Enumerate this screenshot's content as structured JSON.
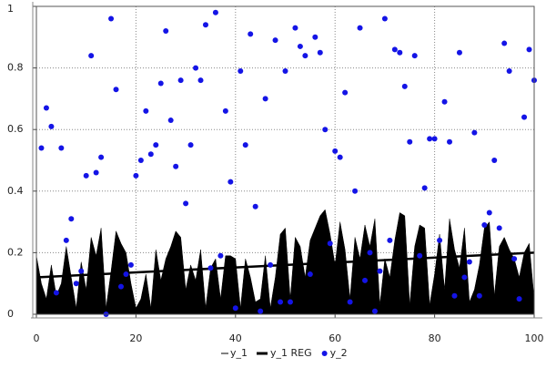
{
  "chart_data": {
    "type": "mixed",
    "xlim": [
      0,
      100
    ],
    "xticks": [
      0,
      20,
      40,
      60,
      80,
      100
    ],
    "ylim": [
      0,
      1
    ],
    "yticks": [
      0,
      0.2,
      0.4,
      0.6,
      0.8,
      1
    ],
    "grid": true,
    "legend": "bottom",
    "series": [
      {
        "name": "y_1",
        "type": "area",
        "color": "#000000",
        "x": [
          0,
          1,
          2,
          3,
          4,
          5,
          6,
          7,
          8,
          9,
          10,
          11,
          12,
          13,
          14,
          15,
          16,
          17,
          18,
          19,
          20,
          21,
          22,
          23,
          24,
          25,
          26,
          27,
          28,
          29,
          30,
          31,
          32,
          33,
          34,
          35,
          36,
          37,
          38,
          39,
          40,
          41,
          42,
          43,
          44,
          45,
          46,
          47,
          48,
          49,
          50,
          51,
          52,
          53,
          54,
          55,
          56,
          57,
          58,
          59,
          60,
          61,
          62,
          63,
          64,
          65,
          66,
          67,
          68,
          69,
          70,
          71,
          72,
          73,
          74,
          75,
          76,
          77,
          78,
          79,
          80,
          81,
          82,
          83,
          84,
          85,
          86,
          87,
          88,
          89,
          90,
          91,
          92,
          93,
          94,
          95,
          96,
          97,
          98,
          99,
          100
        ],
        "values": [
          0.19,
          0.1,
          0.05,
          0.16,
          0.06,
          0.1,
          0.22,
          0.12,
          0.02,
          0.17,
          0.08,
          0.25,
          0.19,
          0.28,
          0.02,
          0.14,
          0.27,
          0.23,
          0.2,
          0.1,
          0.02,
          0.05,
          0.13,
          0.02,
          0.21,
          0.11,
          0.18,
          0.22,
          0.27,
          0.25,
          0.08,
          0.16,
          0.11,
          0.21,
          0.02,
          0.15,
          0.18,
          0.05,
          0.19,
          0.19,
          0.18,
          0.02,
          0.18,
          0.12,
          0.04,
          0.05,
          0.19,
          0.02,
          0.12,
          0.26,
          0.28,
          0.05,
          0.25,
          0.22,
          0.12,
          0.24,
          0.28,
          0.32,
          0.34,
          0.26,
          0.16,
          0.3,
          0.21,
          0.05,
          0.25,
          0.18,
          0.29,
          0.22,
          0.31,
          0.03,
          0.18,
          0.12,
          0.24,
          0.33,
          0.32,
          0.03,
          0.22,
          0.29,
          0.28,
          0.03,
          0.13,
          0.26,
          0.08,
          0.31,
          0.21,
          0.15,
          0.28,
          0.04,
          0.08,
          0.16,
          0.28,
          0.3,
          0.06,
          0.22,
          0.25,
          0.21,
          0.18,
          0.12,
          0.2,
          0.23,
          0.05
        ]
      },
      {
        "name": "y_1 REG",
        "type": "line",
        "color": "#000000",
        "x": [
          0,
          100
        ],
        "values": [
          0.12,
          0.2
        ]
      },
      {
        "name": "y_2",
        "type": "scatter",
        "color": "#1414e6",
        "x": [
          1,
          2,
          3,
          4,
          5,
          6,
          7,
          8,
          9,
          10,
          11,
          12,
          13,
          14,
          15,
          16,
          17,
          18,
          19,
          20,
          21,
          22,
          23,
          24,
          25,
          26,
          27,
          28,
          29,
          30,
          31,
          32,
          33,
          34,
          35,
          36,
          37,
          38,
          39,
          40,
          41,
          42,
          43,
          44,
          45,
          46,
          47,
          48,
          49,
          50,
          51,
          52,
          53,
          54,
          55,
          56,
          57,
          58,
          59,
          60,
          61,
          62,
          63,
          64,
          65,
          66,
          67,
          68,
          69,
          70,
          71,
          72,
          73,
          74,
          75,
          76,
          77,
          78,
          79,
          80,
          81,
          82,
          83,
          84,
          85,
          86,
          87,
          88,
          89,
          90,
          91,
          92,
          93,
          94,
          95,
          96,
          97,
          98,
          99,
          100
        ],
        "values": [
          0.54,
          0.67,
          0.61,
          0.07,
          0.54,
          0.24,
          0.31,
          0.1,
          0.14,
          0.45,
          0.84,
          0.46,
          0.51,
          0.0,
          0.96,
          0.73,
          0.09,
          0.13,
          0.16,
          0.45,
          0.5,
          0.66,
          0.52,
          0.55,
          0.75,
          0.92,
          0.63,
          0.48,
          0.76,
          0.36,
          0.55,
          0.8,
          0.76,
          0.94,
          0.15,
          0.98,
          0.19,
          0.66,
          0.43,
          0.02,
          0.79,
          0.55,
          0.91,
          0.35,
          0.01,
          0.7,
          0.16,
          0.89,
          0.04,
          0.79,
          0.04,
          0.93,
          0.87,
          0.84,
          0.13,
          0.9,
          0.85,
          0.6,
          0.23,
          0.53,
          0.51,
          0.72,
          0.04,
          0.4,
          0.93,
          0.11,
          0.2,
          0.01,
          0.14,
          0.96,
          0.24,
          0.86,
          0.85,
          0.74,
          0.56,
          0.84,
          0.19,
          0.41,
          0.57,
          0.57,
          0.24,
          0.69,
          0.56,
          0.06,
          0.85,
          0.12,
          0.17,
          0.59,
          0.06,
          0.29,
          0.33,
          0.5,
          0.28,
          0.88,
          0.79,
          0.18,
          0.05,
          0.64,
          0.86,
          0.76
        ]
      }
    ]
  }
}
